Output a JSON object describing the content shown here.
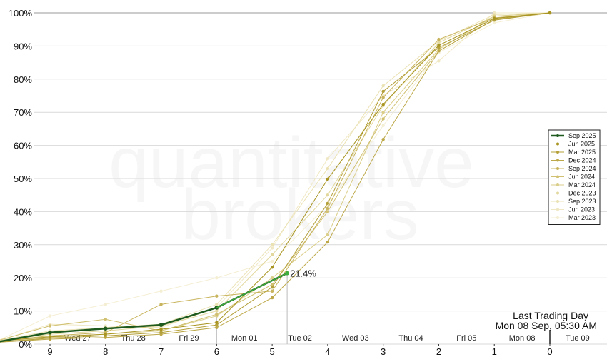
{
  "chart_data": {
    "type": "line",
    "x": [
      9,
      8,
      7,
      6,
      5,
      4,
      3,
      2,
      1,
      0
    ],
    "x_tick_labels": [
      "9",
      "8",
      "7",
      "6",
      "5",
      "4",
      "3",
      "2",
      "1",
      "0"
    ],
    "y_tick_labels": [
      "0%",
      "10%",
      "20%",
      "30%",
      "40%",
      "50%",
      "60%",
      "70%",
      "80%",
      "90%",
      "100%"
    ],
    "ylim": [
      0,
      100
    ],
    "grid": true,
    "legend_position": "right",
    "day_labels": [
      "Wed 27",
      "Thu 28",
      "Fri 29",
      "Mon 01",
      "Tue 02",
      "Wed 03",
      "Thu 04",
      "Fri 05",
      "Mon 08",
      "Tue 09"
    ],
    "watermark": [
      "quantitative",
      "brokers"
    ],
    "annotation": {
      "text": "21.4%",
      "x": 4.73,
      "y": 21.4
    },
    "last_trading_day": {
      "line1": "Last Trading Day",
      "line2": "Mon 08 Sep, 05:30 AM"
    },
    "series": [
      {
        "name": "Sep 2025",
        "color": "#1e5a1e",
        "current": true,
        "x": [
          10,
          9,
          8,
          7,
          6,
          4.73
        ],
        "values": [
          0.5,
          3.5,
          4.7,
          5.8,
          11.0,
          21.4
        ]
      },
      {
        "name": "Jun 2025",
        "color": "#a89420",
        "x": [
          10,
          9,
          8,
          7,
          6,
          5,
          4,
          3,
          2,
          1,
          0
        ],
        "values": [
          0.8,
          2.2,
          3.0,
          4.5,
          6.5,
          23.2,
          49.8,
          72.4,
          90.2,
          98.3,
          100
        ]
      },
      {
        "name": "Mar 2025",
        "color": "#b4a03a",
        "x": [
          10,
          9,
          8,
          7,
          6,
          5,
          4,
          3,
          2,
          1,
          0
        ],
        "values": [
          0.5,
          1.8,
          2.5,
          3.5,
          5.8,
          17.2,
          42.5,
          76.3,
          89.5,
          97.8,
          100
        ]
      },
      {
        "name": "Dec 2024",
        "color": "#bca848",
        "x": [
          10,
          9,
          8,
          7,
          6,
          5,
          4,
          3,
          2,
          1,
          0
        ],
        "values": [
          0.5,
          1.5,
          2.0,
          3.0,
          5.0,
          14.0,
          30.8,
          61.8,
          88.5,
          98.0,
          100
        ]
      },
      {
        "name": "Sep 2024",
        "color": "#c8b45c",
        "x": [
          10,
          9,
          8,
          7,
          6,
          5,
          4,
          3,
          2,
          1,
          0
        ],
        "values": [
          0.8,
          2.5,
          3.5,
          12.0,
          14.5,
          16.0,
          41.0,
          74.5,
          92.0,
          98.5,
          100
        ]
      },
      {
        "name": "Jun 2024",
        "color": "#d0c070",
        "x": [
          10,
          9,
          8,
          7,
          6,
          5,
          4,
          3,
          2,
          1,
          0
        ],
        "values": [
          0.8,
          5.5,
          7.5,
          4.0,
          9.0,
          18.0,
          40.0,
          68.0,
          88.5,
          98.0,
          100
        ]
      },
      {
        "name": "Mar 2024",
        "color": "#dace88",
        "x": [
          10,
          9,
          8,
          7,
          6,
          5,
          4,
          3,
          2,
          1,
          0
        ],
        "values": [
          0.5,
          2.0,
          3.0,
          4.0,
          8.5,
          20.0,
          33.0,
          70.0,
          89.0,
          99.0,
          100
        ]
      },
      {
        "name": "Dec 2023",
        "color": "#e2d89e",
        "x": [
          10,
          9,
          8,
          7,
          6,
          5,
          4,
          3,
          2,
          1,
          0
        ],
        "values": [
          0.8,
          3.0,
          4.0,
          5.5,
          10.0,
          27.0,
          45.0,
          72.0,
          91.0,
          99.0,
          100
        ]
      },
      {
        "name": "Sep 2023",
        "color": "#ebe2b4",
        "x": [
          10,
          9,
          8,
          7,
          6,
          5,
          4,
          3,
          2,
          1,
          0
        ],
        "values": [
          0.8,
          4.0,
          5.0,
          6.0,
          12.0,
          30.0,
          53.0,
          78.0,
          91.5,
          99.5,
          100
        ]
      },
      {
        "name": "Jun 2023",
        "color": "#f0e8c4",
        "x": [
          10,
          9,
          8,
          7,
          6,
          5,
          4,
          3,
          2,
          1,
          0
        ],
        "values": [
          0.5,
          6.0,
          5.5,
          5.0,
          11.0,
          29.0,
          56.0,
          75.0,
          85.5,
          100,
          100
        ]
      },
      {
        "name": "Mar 2023",
        "color": "#f4eed2",
        "x": [
          10,
          9,
          8,
          7,
          6,
          5,
          4,
          3,
          2,
          1,
          0
        ],
        "values": [
          0.5,
          8.5,
          12.0,
          16.0,
          20.0,
          25.0,
          42.0,
          66.0,
          88.0,
          97.0,
          100
        ]
      }
    ]
  }
}
